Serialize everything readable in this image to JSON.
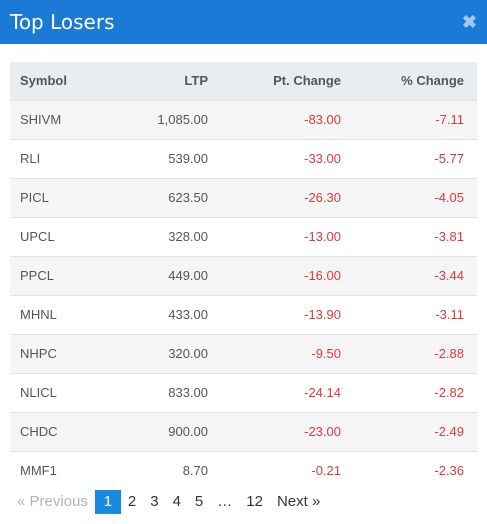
{
  "modal": {
    "title": "Top Losers",
    "close_icon": "close-icon"
  },
  "table": {
    "headers": {
      "symbol": "Symbol",
      "ltp": "LTP",
      "pt_change": "Pt. Change",
      "pct_change": "% Change"
    },
    "rows": [
      {
        "symbol": "SHIVM",
        "ltp": "1,085.00",
        "pt_change": "-83.00",
        "pct_change": "-7.11"
      },
      {
        "symbol": "RLI",
        "ltp": "539.00",
        "pt_change": "-33.00",
        "pct_change": "-5.77"
      },
      {
        "symbol": "PICL",
        "ltp": "623.50",
        "pt_change": "-26.30",
        "pct_change": "-4.05"
      },
      {
        "symbol": "UPCL",
        "ltp": "328.00",
        "pt_change": "-13.00",
        "pct_change": "-3.81"
      },
      {
        "symbol": "PPCL",
        "ltp": "449.00",
        "pt_change": "-16.00",
        "pct_change": "-3.44"
      },
      {
        "symbol": "MHNL",
        "ltp": "433.00",
        "pt_change": "-13.90",
        "pct_change": "-3.11"
      },
      {
        "symbol": "NHPC",
        "ltp": "320.00",
        "pt_change": "-9.50",
        "pct_change": "-2.88"
      },
      {
        "symbol": "NLICL",
        "ltp": "833.00",
        "pt_change": "-24.14",
        "pct_change": "-2.82"
      },
      {
        "symbol": "CHDC",
        "ltp": "900.00",
        "pt_change": "-23.00",
        "pct_change": "-2.49"
      },
      {
        "symbol": "MMF1",
        "ltp": "8.70",
        "pt_change": "-0.21",
        "pct_change": "-2.36"
      }
    ]
  },
  "pagination": {
    "prev": "«  Previous",
    "pages": [
      "1",
      "2",
      "3",
      "4",
      "5"
    ],
    "ellipsis": "…",
    "last": "12",
    "next": "Next  »",
    "current": "1"
  },
  "colors": {
    "header_bg": "#1a7ad6",
    "negative": "#e0383e",
    "active_page": "#1a8ae0"
  }
}
